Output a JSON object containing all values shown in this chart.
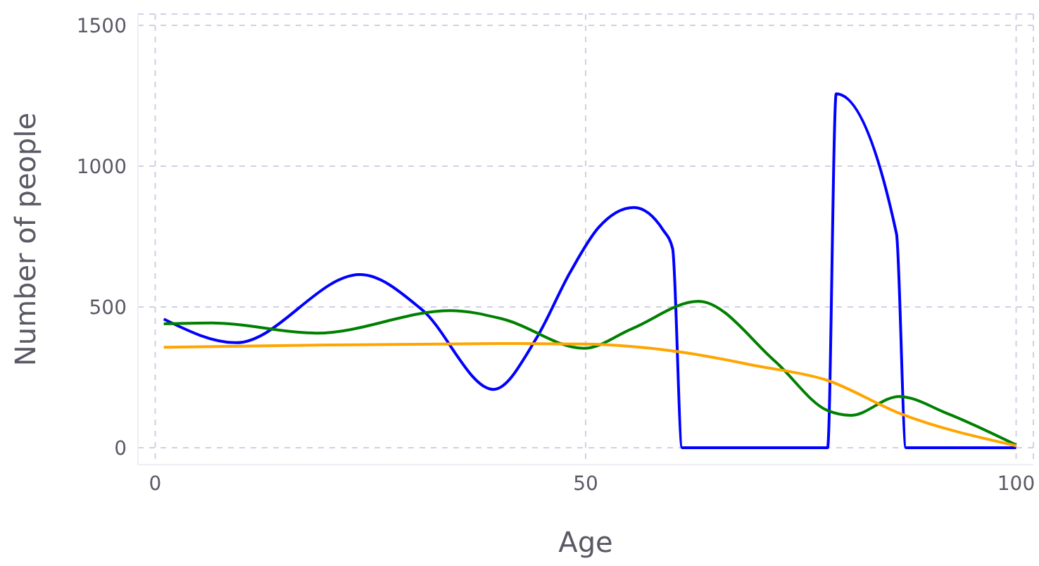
{
  "chart_data": {
    "type": "line",
    "xlabel": "Age",
    "ylabel": "Number of people",
    "xlim": [
      -2,
      102
    ],
    "xticks": [
      0,
      50,
      100
    ],
    "ylim": [
      -60,
      1540
    ],
    "yticks": [
      0,
      500,
      1000,
      1500
    ],
    "grid": true,
    "marker": "none",
    "line_style": "solid",
    "series": [
      {
        "color": "#0000ff",
        "x": [
          1,
          9.4,
          23.8,
          31,
          39.3,
          44.3,
          48.2,
          51.5,
          55.6,
          59,
          60.1,
          61.2,
          78.1,
          79.1,
          86.1,
          87.2,
          100
        ],
        "values": [
          457,
          373,
          615,
          490,
          207,
          390,
          623,
          782,
          853,
          773,
          707,
          0,
          0,
          1257,
          760,
          0,
          0
        ]
      },
      {
        "color": "#008000",
        "x": [
          1,
          6.6,
          18.8,
          34.3,
          40.4,
          49.8,
          55.4,
          63.1,
          72,
          78.1,
          80.8,
          86.4,
          91.9,
          100
        ],
        "values": [
          440,
          443,
          407,
          487,
          457,
          353,
          423,
          520,
          307,
          132,
          115,
          182,
          123,
          10
        ]
      },
      {
        "color": "#ffa500",
        "x": [
          1,
          20,
          40,
          50,
          61,
          70,
          78,
          86.4,
          100
        ],
        "values": [
          357,
          365,
          370,
          368,
          340,
          290,
          240,
          123,
          7
        ]
      }
    ]
  }
}
